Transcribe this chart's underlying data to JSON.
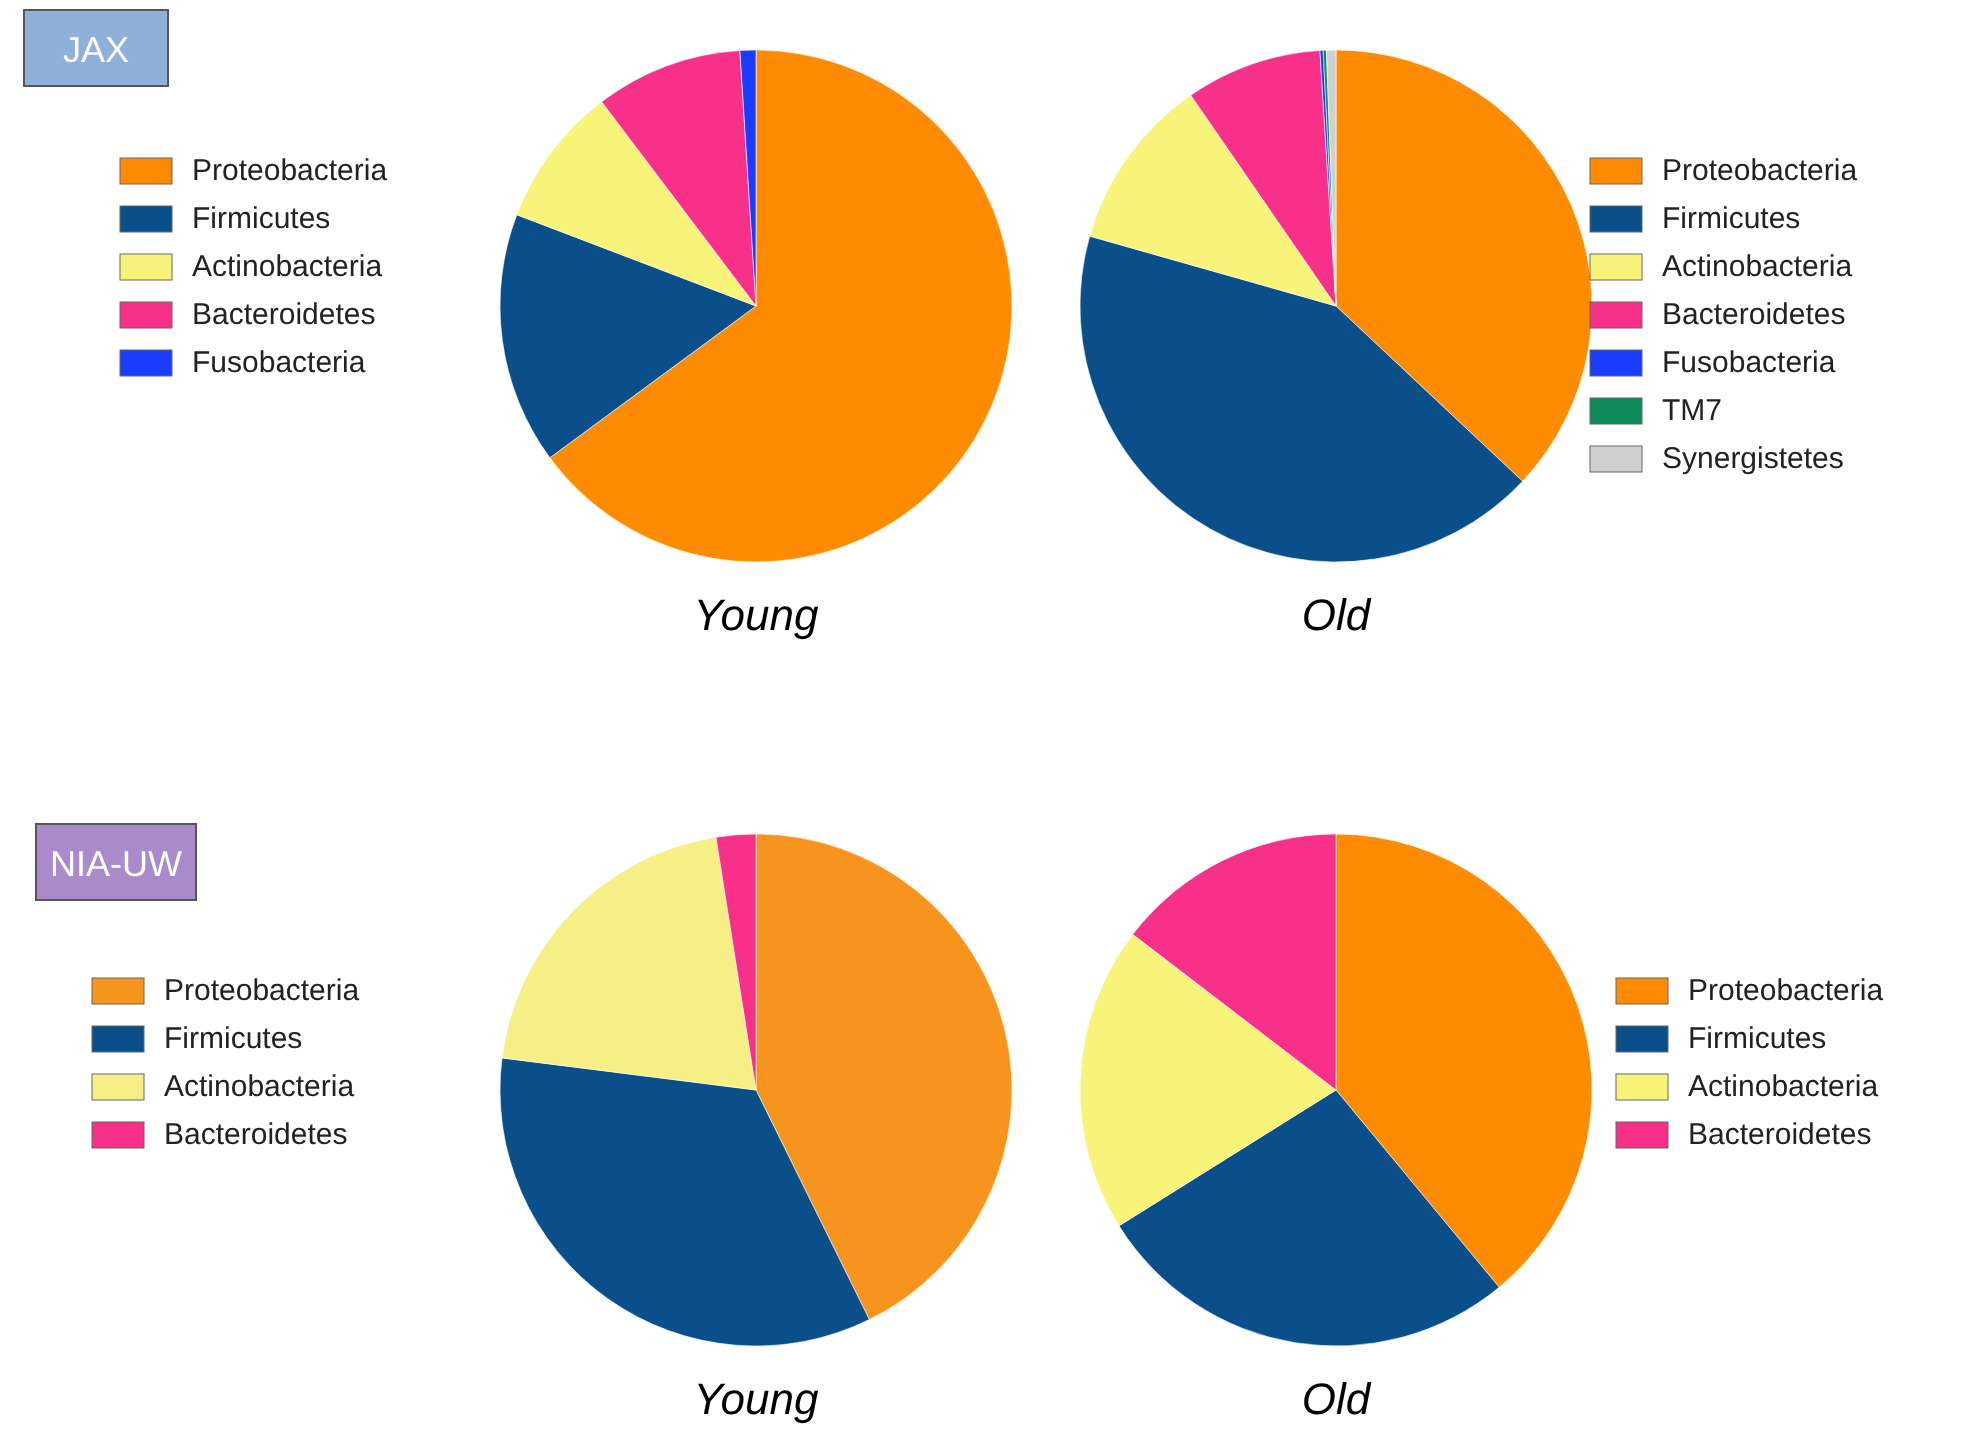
{
  "chart_data": [
    {
      "type": "pie",
      "title": "Young",
      "annotations": [
        "JAX"
      ],
      "legend": "left",
      "categories": [
        "Proteobacteria",
        "Firmicutes",
        "Actinobacteria",
        "Bacteroidetes",
        "Fusobacteria"
      ],
      "values": [
        64.9,
        15.9,
        8.9,
        9.3,
        1.0
      ],
      "colors": [
        "#ff8c00",
        "#0b4f8a",
        "#f8f47a",
        "#f7308a",
        "#1a3cff"
      ]
    },
    {
      "type": "pie",
      "title": "Old",
      "legend": "right",
      "categories": [
        "Proteobacteria",
        "Firmicutes",
        "Actinobacteria",
        "Bacteroidetes",
        "Fusobacteria",
        "TM7",
        "Synergistetes"
      ],
      "values": [
        37,
        42.4,
        11,
        8.6,
        0.2,
        0.2,
        0.6
      ],
      "colors": [
        "#ff8c00",
        "#0b4f8a",
        "#f8f47a",
        "#f7308a",
        "#1a3cff",
        "#0f8a5a",
        "#d0d0d0"
      ]
    },
    {
      "type": "pie",
      "title": "Young",
      "annotations": [
        "NIA-UW"
      ],
      "legend": "left",
      "categories": [
        "Proteobacteria",
        "Firmicutes",
        "Actinobacteria",
        "Bacteroidetes"
      ],
      "values": [
        42.7,
        34.3,
        20.5,
        2.5
      ],
      "colors": [
        "#f7941d",
        "#0b4f8a",
        "#f5ef85",
        "#f7308a"
      ]
    },
    {
      "type": "pie",
      "title": "Old",
      "legend": "right",
      "categories": [
        "Proteobacteria",
        "Firmicutes",
        "Actinobacteria",
        "Bacteroidetes"
      ],
      "values": [
        39,
        27.1,
        19.3,
        14.6
      ],
      "colors": [
        "#ff8c00",
        "#0b4f8a",
        "#f8f47a",
        "#f7308a"
      ]
    }
  ]
}
